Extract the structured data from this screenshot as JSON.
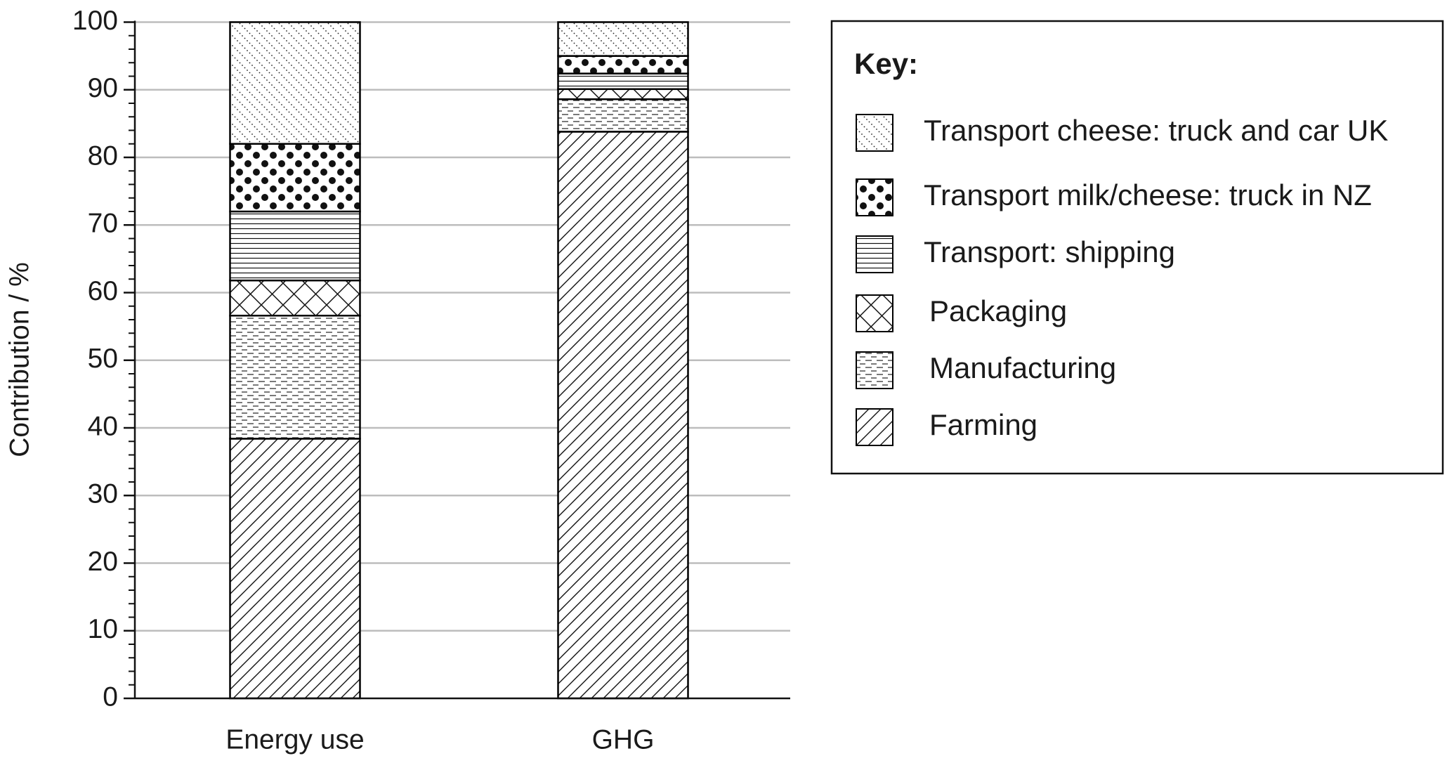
{
  "chart_data": {
    "type": "stacked-bar",
    "y_label": "Contribution / %",
    "categories": [
      "Energy use",
      "GHG"
    ],
    "series": [
      {
        "name": "Farming",
        "pattern": "diagonal",
        "color": "#000000",
        "values": [
          38.4,
          83.8
        ]
      },
      {
        "name": "Manufacturing",
        "pattern": "dashes",
        "color": "#000000",
        "values": [
          18.2,
          4.8
        ]
      },
      {
        "name": "Packaging",
        "pattern": "crosshatch",
        "color": "#000000",
        "values": [
          5.2,
          1.5
        ]
      },
      {
        "name": "Transport: shipping",
        "pattern": "hlines",
        "color": "#000000",
        "values": [
          10.2,
          2.3
        ]
      },
      {
        "name": "Transport milk/cheese: truck in NZ",
        "pattern": "dots-large",
        "color": "#000000",
        "values": [
          10.0,
          2.6
        ]
      },
      {
        "name": "Transport cheese: truck and car UK",
        "pattern": "dots-fine",
        "color": "#000000",
        "values": [
          18.0,
          5.0
        ]
      }
    ],
    "legend_title": "Key:",
    "legend_position": "right",
    "ylim": [
      0,
      100
    ],
    "yticks": [
      0,
      10,
      20,
      30,
      40,
      50,
      60,
      70,
      80,
      90,
      100
    ],
    "minor_tick_step": 2,
    "grid": true
  }
}
